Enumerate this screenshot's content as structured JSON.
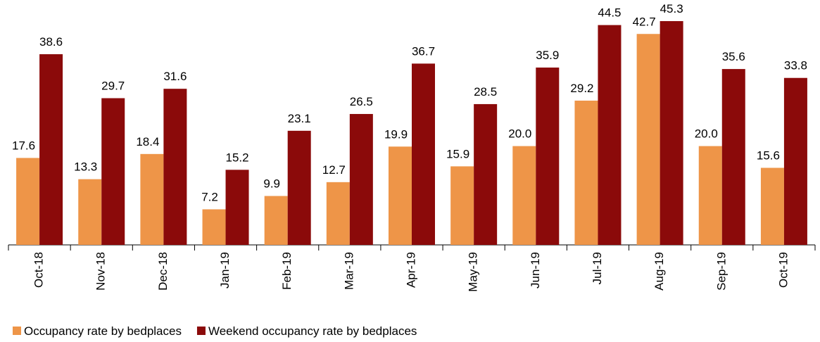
{
  "chart_data": {
    "type": "bar",
    "categories": [
      "Oct-18",
      "Nov-18",
      "Dec-18",
      "Jan-19",
      "Feb-19",
      "Mar-19",
      "Apr-19",
      "May-19",
      "Jun-19",
      "Jul-19",
      "Aug-19",
      "Sep-19",
      "Oct-19"
    ],
    "series": [
      {
        "name": "Occupancy rate by bedplaces",
        "color": "#ee9548",
        "values": [
          17.6,
          13.3,
          18.4,
          7.2,
          9.9,
          12.7,
          19.9,
          15.9,
          20.0,
          29.2,
          42.7,
          20.0,
          15.6
        ],
        "value_labels": [
          "17.6",
          "13.3",
          "18.4",
          "7.2",
          "9.9",
          "12.7",
          "19.9",
          "15.9",
          "20.0",
          "29.2",
          "42.7",
          "20.0",
          "15.6"
        ]
      },
      {
        "name": "Weekend occupancy rate by bedplaces",
        "color": "#8b0a0a",
        "values": [
          38.6,
          29.7,
          31.6,
          15.2,
          23.1,
          26.5,
          36.7,
          28.5,
          35.9,
          44.5,
          45.3,
          35.6,
          33.8
        ],
        "value_labels": [
          "38.6",
          "29.7",
          "31.6",
          "15.2",
          "23.1",
          "26.5",
          "36.7",
          "28.5",
          "35.9",
          "44.5",
          "45.3",
          "35.6",
          "33.8"
        ]
      }
    ],
    "legend": "bottom-left"
  }
}
